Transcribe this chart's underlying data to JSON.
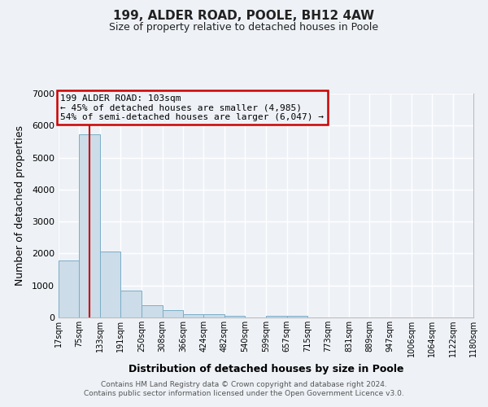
{
  "title": "199, ALDER ROAD, POOLE, BH12 4AW",
  "subtitle": "Size of property relative to detached houses in Poole",
  "xlabel": "Distribution of detached houses by size in Poole",
  "ylabel": "Number of detached properties",
  "bar_color": "#ccdce8",
  "bar_edge_color": "#7aaec8",
  "background_color": "#eef2f7",
  "grid_color": "#ffffff",
  "annotation_box_edge": "#cc0000",
  "annotation_line_color": "#cc0000",
  "annotation_text_line1": "199 ALDER ROAD: 103sqm",
  "annotation_text_line2": "← 45% of detached houses are smaller (4,985)",
  "annotation_text_line3": "54% of semi-detached houses are larger (6,047) →",
  "property_value_sqm": 103,
  "bin_edges": [
    17,
    75,
    133,
    191,
    250,
    308,
    366,
    424,
    482,
    540,
    599,
    657,
    715,
    773,
    831,
    889,
    947,
    1006,
    1064,
    1122,
    1180
  ],
  "bin_labels": [
    "17sqm",
    "75sqm",
    "133sqm",
    "191sqm",
    "250sqm",
    "308sqm",
    "366sqm",
    "424sqm",
    "482sqm",
    "540sqm",
    "599sqm",
    "657sqm",
    "715sqm",
    "773sqm",
    "831sqm",
    "889sqm",
    "947sqm",
    "1006sqm",
    "1064sqm",
    "1122sqm",
    "1180sqm"
  ],
  "bar_heights": [
    1780,
    5730,
    2050,
    830,
    370,
    230,
    110,
    90,
    50,
    0,
    50,
    50,
    0,
    0,
    0,
    0,
    0,
    0,
    0,
    0
  ],
  "ylim": [
    0,
    7000
  ],
  "yticks": [
    0,
    1000,
    2000,
    3000,
    4000,
    5000,
    6000,
    7000
  ],
  "footer_line1": "Contains HM Land Registry data © Crown copyright and database right 2024.",
  "footer_line2": "Contains public sector information licensed under the Open Government Licence v3.0."
}
